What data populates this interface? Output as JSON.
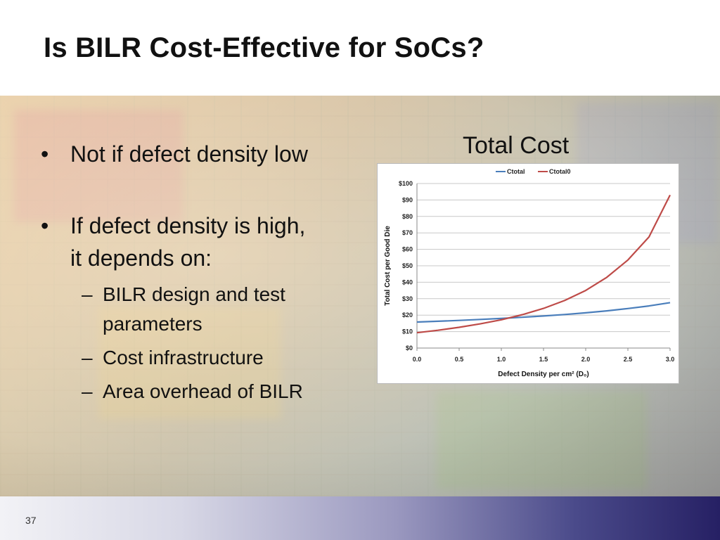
{
  "slide": {
    "title": "Is BILR Cost-Effective for SoCs?",
    "page_number": "37"
  },
  "bullets": [
    {
      "text": "Not if defect density low"
    },
    {
      "text_line1": "If defect density is high,",
      "text_line2": "it depends on:"
    }
  ],
  "subbullets": [
    {
      "line1": "BILR design and test",
      "line2": "parameters"
    },
    {
      "line1": "Cost infrastructure"
    },
    {
      "line1": "Area overhead of BILR"
    }
  ],
  "chart_caption": "Total Cost",
  "chart_data": {
    "type": "line",
    "xlabel": "Defect Density per cm² (D₀)",
    "ylabel": "Total Cost per Good Die",
    "xlim": [
      0,
      3
    ],
    "ylim": [
      0,
      100
    ],
    "x_ticks": [
      "0.0",
      "0.5",
      "1.0",
      "1.5",
      "2.0",
      "2.5",
      "3.0"
    ],
    "y_ticks": [
      "$0",
      "$10",
      "$20",
      "$30",
      "$40",
      "$50",
      "$60",
      "$70",
      "$80",
      "$90",
      "$100"
    ],
    "grid": true,
    "legend_position": "top",
    "x": [
      0,
      0.25,
      0.5,
      0.75,
      1.0,
      1.25,
      1.5,
      1.75,
      2.0,
      2.25,
      2.5,
      2.75,
      3.0
    ],
    "series": [
      {
        "name": "Ctotal",
        "color": "#4a7ebb",
        "values": [
          15.8,
          16.3,
          16.8,
          17.4,
          18.0,
          18.7,
          19.5,
          20.4,
          21.4,
          22.6,
          24.0,
          25.6,
          27.6
        ]
      },
      {
        "name": "Ctotal0",
        "color": "#be4b48",
        "values": [
          9.3,
          10.8,
          12.6,
          14.7,
          17.2,
          20.3,
          24.1,
          28.9,
          35.0,
          43.0,
          53.5,
          67.5,
          93.0
        ]
      }
    ]
  }
}
